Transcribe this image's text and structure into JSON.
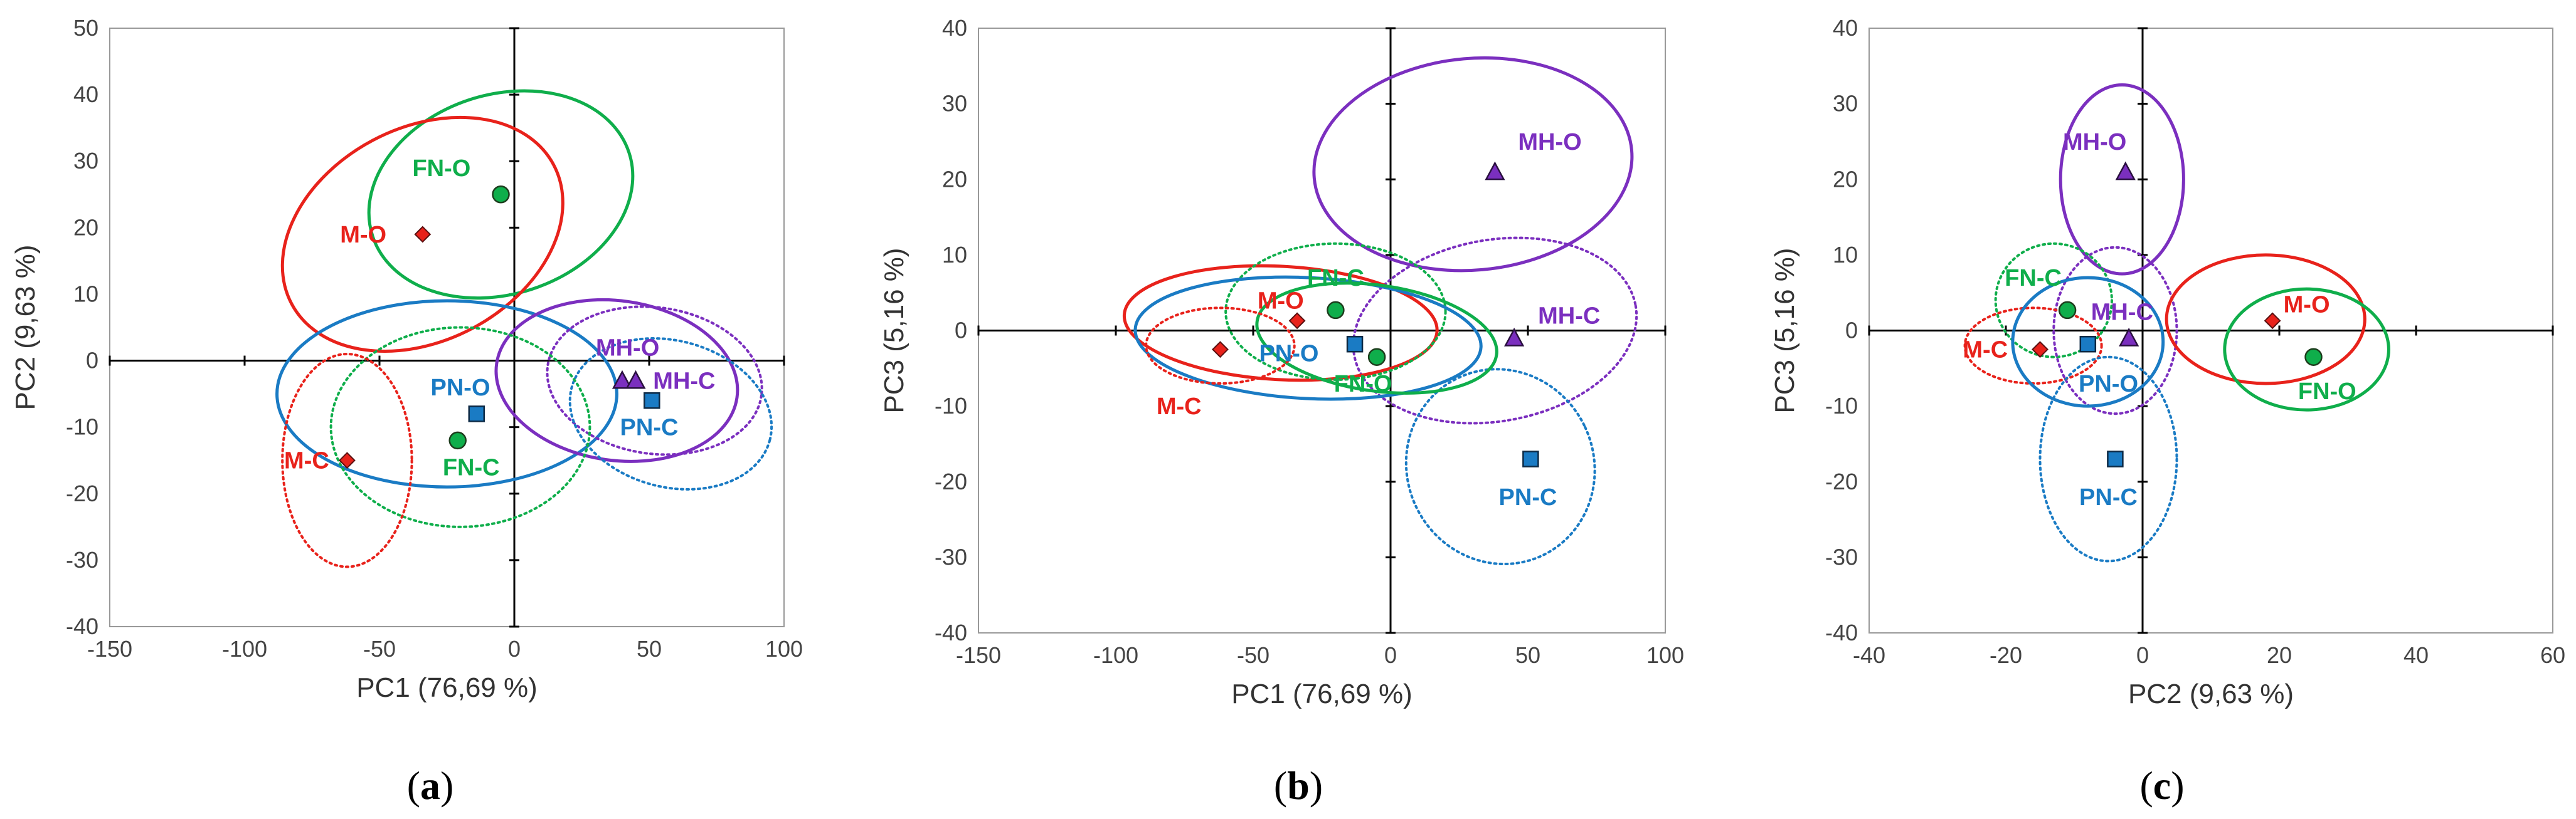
{
  "colors": {
    "M": "#e8221b",
    "FN": "#0fae4b",
    "PN": "#1a7bc4",
    "MH": "#7b2fbf"
  },
  "chart_data": [
    {
      "type": "scatter",
      "panel": "a",
      "xlabel": "PC1 (76,69 %)",
      "ylabel": "PC2 (9,63 %)",
      "xlim": [
        -150,
        100
      ],
      "ylim": [
        -40,
        50
      ],
      "xticks": [
        -150,
        -100,
        -50,
        0,
        50,
        100
      ],
      "yticks": [
        -40,
        -30,
        -20,
        -10,
        0,
        10,
        20,
        30,
        40,
        50
      ],
      "points": [
        {
          "name": "FN-O",
          "group": "FN",
          "marker": "circle",
          "x": -5,
          "y": 25,
          "lx": -27,
          "ly": 29
        },
        {
          "name": "M-O",
          "group": "M",
          "marker": "diamond",
          "x": -34,
          "y": 19,
          "lx": -56,
          "ly": 19
        },
        {
          "name": "MH-O",
          "group": "MH",
          "marker": "triangle",
          "x": 40,
          "y": -3,
          "lx": 42,
          "ly": 2
        },
        {
          "name": "MH-C",
          "group": "MH",
          "marker": "triangle",
          "x": 45,
          "y": -3,
          "lx": 63,
          "ly": -3
        },
        {
          "name": "PN-O",
          "group": "PN",
          "marker": "square",
          "x": -14,
          "y": -8,
          "lx": -20,
          "ly": -4
        },
        {
          "name": "PN-C",
          "group": "PN",
          "marker": "square",
          "x": 51,
          "y": -6,
          "lx": 50,
          "ly": -10
        },
        {
          "name": "FN-C",
          "group": "FN",
          "marker": "circle",
          "x": -21,
          "y": -12,
          "lx": -16,
          "ly": -16
        },
        {
          "name": "M-C",
          "group": "M",
          "marker": "diamond",
          "x": -62,
          "y": -15,
          "lx": -77,
          "ly": -15
        }
      ],
      "ellipses": [
        {
          "group": "FN",
          "style": "solid",
          "cx": -5,
          "cy": 25,
          "rx": 50,
          "ry": 15,
          "rot": -18
        },
        {
          "group": "M",
          "style": "solid",
          "cx": -34,
          "cy": 19,
          "rx": 55,
          "ry": 16,
          "rot": -28
        },
        {
          "group": "PN",
          "style": "solid",
          "cx": -25,
          "cy": -5,
          "rx": 63,
          "ry": 14,
          "rot": 0
        },
        {
          "group": "MH",
          "style": "solid",
          "cx": 38,
          "cy": -3,
          "rx": 45,
          "ry": 12,
          "rot": 8
        },
        {
          "group": "MH",
          "style": "dotted",
          "cx": 52,
          "cy": -3,
          "rx": 40,
          "ry": 11,
          "rot": 8
        },
        {
          "group": "PN",
          "style": "dotted",
          "cx": 58,
          "cy": -8,
          "rx": 38,
          "ry": 11,
          "rot": 15
        },
        {
          "group": "FN",
          "style": "dotted",
          "cx": -20,
          "cy": -10,
          "rx": 48,
          "ry": 15,
          "rot": 0
        },
        {
          "group": "M",
          "style": "dotted",
          "cx": -62,
          "cy": -15,
          "rx": 24,
          "ry": 16,
          "rot": 0
        }
      ]
    },
    {
      "type": "scatter",
      "panel": "b",
      "xlabel": "PC1 (76,69 %)",
      "ylabel": "PC3 (5,16 %)",
      "xlim": [
        -150,
        100
      ],
      "ylim": [
        -40,
        40
      ],
      "xticks": [
        -150,
        -100,
        -50,
        0,
        50,
        100
      ],
      "yticks": [
        -40,
        -30,
        -20,
        -10,
        0,
        10,
        20,
        30,
        40
      ],
      "points": [
        {
          "name": "MH-O",
          "group": "MH",
          "marker": "triangle",
          "x": 38,
          "y": 21,
          "lx": 58,
          "ly": 25
        },
        {
          "name": "FN-C",
          "group": "FN",
          "marker": "circle",
          "x": -20,
          "y": 2.7,
          "lx": -20,
          "ly": 7
        },
        {
          "name": "M-O",
          "group": "M",
          "marker": "diamond",
          "x": -34,
          "y": 1.3,
          "lx": -40,
          "ly": 4
        },
        {
          "name": "MH-C",
          "group": "MH",
          "marker": "triangle",
          "x": 45,
          "y": -1,
          "lx": 65,
          "ly": 2
        },
        {
          "name": "PN-O",
          "group": "PN",
          "marker": "square",
          "x": -13,
          "y": -1.8,
          "lx": -37,
          "ly": -3
        },
        {
          "name": "FN-O",
          "group": "FN",
          "marker": "circle",
          "x": -5,
          "y": -3.5,
          "lx": -10,
          "ly": -7
        },
        {
          "name": "M-C",
          "group": "M",
          "marker": "diamond",
          "x": -62,
          "y": -2.5,
          "lx": -77,
          "ly": -10
        },
        {
          "name": "PN-C",
          "group": "PN",
          "marker": "square",
          "x": 51,
          "y": -17,
          "lx": 50,
          "ly": -22
        }
      ],
      "ellipses": [
        {
          "group": "MH",
          "style": "solid",
          "cx": 30,
          "cy": 22,
          "rx": 58,
          "ry": 14,
          "rot": -5
        },
        {
          "group": "MH",
          "style": "dotted",
          "cx": 38,
          "cy": 0,
          "rx": 52,
          "ry": 12,
          "rot": -10
        },
        {
          "group": "PN",
          "style": "dotted",
          "cx": 40,
          "cy": -18,
          "rx": 34,
          "ry": 13,
          "rot": -25
        },
        {
          "group": "M",
          "style": "solid",
          "cx": -40,
          "cy": 1,
          "rx": 57,
          "ry": 7.5,
          "rot": 3
        },
        {
          "group": "FN",
          "style": "dotted",
          "cx": -20,
          "cy": 2.5,
          "rx": 40,
          "ry": 9,
          "rot": 0
        },
        {
          "group": "PN",
          "style": "solid",
          "cx": -30,
          "cy": -1,
          "rx": 63,
          "ry": 8,
          "rot": 3
        },
        {
          "group": "FN",
          "style": "solid",
          "cx": -5,
          "cy": -1,
          "rx": 44,
          "ry": 7,
          "rot": 8
        },
        {
          "group": "M",
          "style": "dotted",
          "cx": -62,
          "cy": -2,
          "rx": 27,
          "ry": 5,
          "rot": 0
        }
      ]
    },
    {
      "type": "scatter",
      "panel": "c",
      "xlabel": "PC2 (9,63 %)",
      "ylabel": "PC3 (5,16 %)",
      "xlim": [
        -40,
        60
      ],
      "ylim": [
        -40,
        40
      ],
      "xticks": [
        -40,
        -20,
        0,
        20,
        40,
        60
      ],
      "yticks": [
        -40,
        -30,
        -20,
        -10,
        0,
        10,
        20,
        30,
        40
      ],
      "points": [
        {
          "name": "MH-O",
          "group": "MH",
          "marker": "triangle",
          "x": -2.5,
          "y": 21,
          "lx": -7,
          "ly": 25
        },
        {
          "name": "FN-C",
          "group": "FN",
          "marker": "circle",
          "x": -11,
          "y": 2.7,
          "lx": -16,
          "ly": 7
        },
        {
          "name": "MH-C",
          "group": "MH",
          "marker": "triangle",
          "x": -2,
          "y": -1,
          "lx": -3,
          "ly": 2.5
        },
        {
          "name": "M-O",
          "group": "M",
          "marker": "diamond",
          "x": 19,
          "y": 1.3,
          "lx": 24,
          "ly": 3.5
        },
        {
          "name": "M-C",
          "group": "M",
          "marker": "diamond",
          "x": -15,
          "y": -2.5,
          "lx": -23,
          "ly": -2.5
        },
        {
          "name": "PN-O",
          "group": "PN",
          "marker": "square",
          "x": -8,
          "y": -1.8,
          "lx": -5,
          "ly": -7
        },
        {
          "name": "FN-O",
          "group": "FN",
          "marker": "circle",
          "x": 25,
          "y": -3.5,
          "lx": 27,
          "ly": -8
        },
        {
          "name": "PN-C",
          "group": "PN",
          "marker": "square",
          "x": -4,
          "y": -17,
          "lx": -5,
          "ly": -22
        }
      ],
      "ellipses": [
        {
          "group": "MH",
          "style": "solid",
          "cx": -3,
          "cy": 20,
          "rx": 9,
          "ry": 12.5,
          "rot": 0
        },
        {
          "group": "FN",
          "style": "dotted",
          "cx": -13,
          "cy": 4,
          "rx": 8.5,
          "ry": 7.5,
          "rot": 0
        },
        {
          "group": "MH",
          "style": "dotted",
          "cx": -4,
          "cy": 0,
          "rx": 9,
          "ry": 11,
          "rot": 0
        },
        {
          "group": "M",
          "style": "solid",
          "cx": 18,
          "cy": 1.5,
          "rx": 14.5,
          "ry": 8.5,
          "rot": 0
        },
        {
          "group": "FN",
          "style": "solid",
          "cx": 24,
          "cy": -2.5,
          "rx": 12,
          "ry": 8,
          "rot": 0
        },
        {
          "group": "M",
          "style": "dotted",
          "cx": -16,
          "cy": -2,
          "rx": 10,
          "ry": 5,
          "rot": 0
        },
        {
          "group": "PN",
          "style": "solid",
          "cx": -8,
          "cy": -1.5,
          "rx": 11,
          "ry": 8.5,
          "rot": 0
        },
        {
          "group": "PN",
          "style": "dotted",
          "cx": -5,
          "cy": -17,
          "rx": 10,
          "ry": 13.5,
          "rot": 0
        }
      ]
    }
  ],
  "panel_labels": [
    {
      "open": "(",
      "letter": "a",
      "close": ")"
    },
    {
      "open": "(",
      "letter": "b",
      "close": ")"
    },
    {
      "open": "(",
      "letter": "c",
      "close": ")"
    }
  ]
}
